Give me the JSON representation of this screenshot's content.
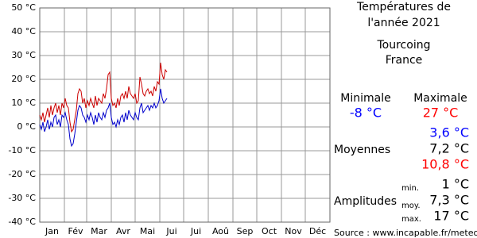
{
  "chart_data": {
    "type": "line",
    "x": [
      0,
      2,
      4,
      6,
      8,
      10,
      12,
      14,
      16,
      18,
      20,
      22,
      24,
      26,
      28,
      30,
      32,
      34,
      36,
      38,
      40,
      42,
      44,
      46,
      48,
      50,
      52,
      54,
      56,
      58,
      60,
      62,
      64,
      66,
      68,
      70,
      72,
      74,
      76,
      78,
      80,
      82,
      84,
      86,
      88,
      90,
      92,
      94,
      96,
      98,
      100,
      102,
      104,
      106,
      108,
      110,
      112,
      114,
      116,
      118,
      120,
      122,
      124,
      126,
      128,
      130,
      132,
      134,
      136,
      138,
      140,
      142,
      144,
      146,
      148,
      150,
      152,
      154,
      156,
      158,
      160
    ],
    "series": [
      {
        "color": "#cc0000",
        "values": [
          5,
          3,
          6,
          2,
          5,
          8,
          4,
          9,
          5,
          8,
          10,
          6,
          9,
          5,
          10,
          8,
          12,
          9,
          8,
          2,
          -2,
          -1,
          3,
          7,
          14,
          16,
          15,
          10,
          12,
          8,
          11,
          9,
          12,
          10,
          8,
          13,
          9,
          12,
          11,
          10,
          14,
          12,
          16,
          22,
          23,
          12,
          9,
          10,
          8,
          12,
          9,
          13,
          14,
          12,
          15,
          12,
          17,
          14,
          13,
          12,
          14,
          10,
          11,
          21,
          18,
          14,
          13,
          15,
          16,
          14,
          15,
          13,
          17,
          15,
          19,
          18,
          27,
          22,
          20,
          24,
          23
        ]
      },
      {
        "color": "#0000cc",
        "values": [
          1,
          -1,
          2,
          -2,
          0,
          3,
          -1,
          2,
          0,
          4,
          5,
          1,
          3,
          0,
          5,
          4,
          6,
          3,
          1,
          -5,
          -8,
          -7,
          -3,
          2,
          7,
          9,
          8,
          5,
          4,
          2,
          5,
          3,
          6,
          4,
          1,
          5,
          2,
          6,
          4,
          3,
          6,
          4,
          7,
          8,
          10,
          4,
          1,
          2,
          0,
          3,
          1,
          4,
          5,
          2,
          6,
          3,
          7,
          5,
          4,
          3,
          6,
          4,
          3,
          8,
          10,
          6,
          7,
          8,
          9,
          7,
          9,
          8,
          10,
          8,
          9,
          11,
          16,
          12,
          10,
          11,
          12
        ]
      }
    ],
    "xlim": [
      0,
      365
    ],
    "xgrid": [
      0,
      31,
      59,
      90,
      120,
      151,
      181,
      212,
      243,
      273,
      304,
      334,
      365
    ],
    "xticks": [
      {
        "value": 15.5,
        "label": "Jan"
      },
      {
        "value": 45,
        "label": "Fév"
      },
      {
        "value": 74.5,
        "label": "Mar"
      },
      {
        "value": 105,
        "label": "Avr"
      },
      {
        "value": 135.5,
        "label": "Mai"
      },
      {
        "value": 166,
        "label": "Jui"
      },
      {
        "value": 196.5,
        "label": "Jui"
      },
      {
        "value": 227.5,
        "label": "Aoû"
      },
      {
        "value": 258,
        "label": "Sep"
      },
      {
        "value": 288.5,
        "label": "Oct"
      },
      {
        "value": 319,
        "label": "Nov"
      },
      {
        "value": 349.5,
        "label": "Déc"
      }
    ],
    "ylim": [
      -40,
      50
    ],
    "yticks": [
      {
        "value": -40,
        "label": "-40 °C"
      },
      {
        "value": -30,
        "label": "-30 °C"
      },
      {
        "value": -20,
        "label": "-20 °C"
      },
      {
        "value": -10,
        "label": "-10 °C"
      },
      {
        "value": 0,
        "label": "0 °C"
      },
      {
        "value": 10,
        "label": "10 °C"
      },
      {
        "value": 20,
        "label": "20 °C"
      },
      {
        "value": 30,
        "label": "30 °C"
      },
      {
        "value": 40,
        "label": "40 °C"
      },
      {
        "value": 50,
        "label": "50 °C"
      }
    ],
    "grid": true
  },
  "panel": {
    "title": [
      "Températures de",
      "l'année 2021"
    ],
    "city": "Tourcoing",
    "country": "France",
    "min_label": "Minimale",
    "max_label": "Maximale",
    "min_value": "-8 °C",
    "max_value": "27 °C",
    "mean_label": "Moyennes",
    "means": [
      "3,6 °C",
      "7,2 °C",
      "10,8 °C"
    ],
    "amp_label": "Amplitudes",
    "amp_keys": [
      "min.",
      "moy.",
      "max."
    ],
    "amps": [
      "1 °C",
      "7,3 °C",
      "17 °C"
    ],
    "source": "Source : www.incapable.fr/meteo"
  }
}
